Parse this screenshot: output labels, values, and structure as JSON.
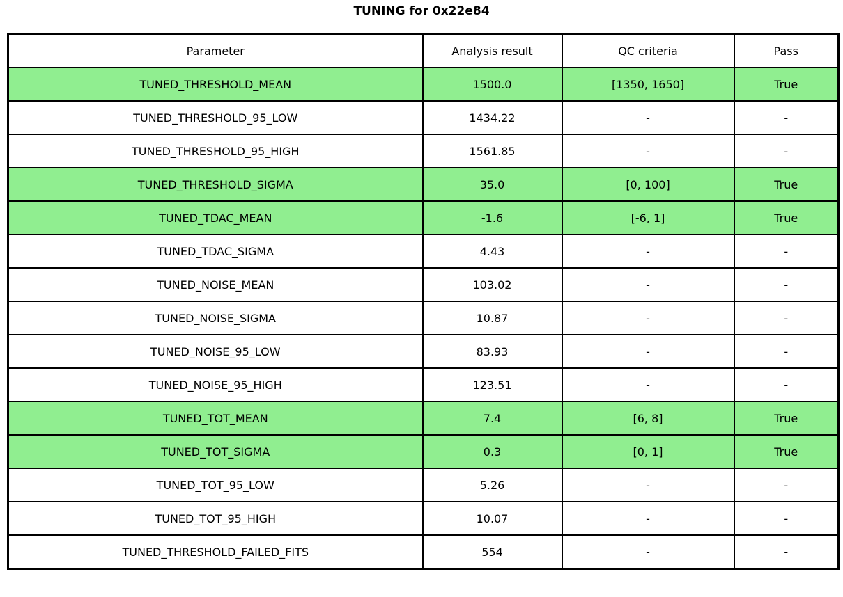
{
  "title": "TUNING for 0x22e84",
  "colors": {
    "highlight_green": "#90EE90",
    "border": "#000000",
    "background": "#ffffff",
    "text": "#000000"
  },
  "table": {
    "columns": {
      "parameter": "Parameter",
      "result": "Analysis result",
      "qc": "QC criteria",
      "pass": "Pass"
    },
    "rows": [
      {
        "parameter": "TUNED_THRESHOLD_MEAN",
        "result": "1500.0",
        "qc": "[1350, 1650]",
        "pass": "True",
        "highlight": true
      },
      {
        "parameter": "TUNED_THRESHOLD_95_LOW",
        "result": "1434.22",
        "qc": "-",
        "pass": "-",
        "highlight": false
      },
      {
        "parameter": "TUNED_THRESHOLD_95_HIGH",
        "result": "1561.85",
        "qc": "-",
        "pass": "-",
        "highlight": false
      },
      {
        "parameter": "TUNED_THRESHOLD_SIGMA",
        "result": "35.0",
        "qc": "[0, 100]",
        "pass": "True",
        "highlight": true
      },
      {
        "parameter": "TUNED_TDAC_MEAN",
        "result": "-1.6",
        "qc": "[-6, 1]",
        "pass": "True",
        "highlight": true
      },
      {
        "parameter": "TUNED_TDAC_SIGMA",
        "result": "4.43",
        "qc": "-",
        "pass": "-",
        "highlight": false
      },
      {
        "parameter": "TUNED_NOISE_MEAN",
        "result": "103.02",
        "qc": "-",
        "pass": "-",
        "highlight": false
      },
      {
        "parameter": "TUNED_NOISE_SIGMA",
        "result": "10.87",
        "qc": "-",
        "pass": "-",
        "highlight": false
      },
      {
        "parameter": "TUNED_NOISE_95_LOW",
        "result": "83.93",
        "qc": "-",
        "pass": "-",
        "highlight": false
      },
      {
        "parameter": "TUNED_NOISE_95_HIGH",
        "result": "123.51",
        "qc": "-",
        "pass": "-",
        "highlight": false
      },
      {
        "parameter": "TUNED_TOT_MEAN",
        "result": "7.4",
        "qc": "[6, 8]",
        "pass": "True",
        "highlight": true
      },
      {
        "parameter": "TUNED_TOT_SIGMA",
        "result": "0.3",
        "qc": "[0, 1]",
        "pass": "True",
        "highlight": true
      },
      {
        "parameter": "TUNED_TOT_95_LOW",
        "result": "5.26",
        "qc": "-",
        "pass": "-",
        "highlight": false
      },
      {
        "parameter": "TUNED_TOT_95_HIGH",
        "result": "10.07",
        "qc": "-",
        "pass": "-",
        "highlight": false
      },
      {
        "parameter": "TUNED_THRESHOLD_FAILED_FITS",
        "result": "554",
        "qc": "-",
        "pass": "-",
        "highlight": false
      }
    ]
  }
}
